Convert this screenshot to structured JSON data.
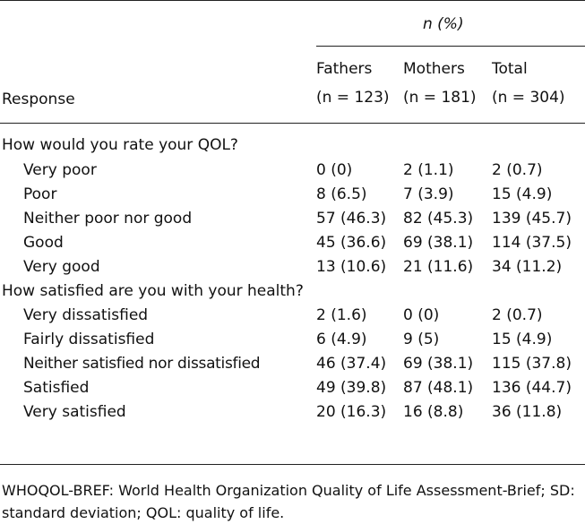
{
  "header": {
    "n_percent_label": "n (%)",
    "response_label": "Response",
    "columns": [
      {
        "name": "Fathers",
        "n": "(n = 123)"
      },
      {
        "name": "Mothers",
        "n": "(n = 181)"
      },
      {
        "name": "Total",
        "n": "(n = 304)"
      }
    ]
  },
  "sections": [
    {
      "title": "How would you rate your QOL?",
      "rows": [
        {
          "label": "Very poor",
          "fathers": "0 (0)",
          "mothers": "2 (1.1)",
          "total": "2 (0.7)"
        },
        {
          "label": "Poor",
          "fathers": "8 (6.5)",
          "mothers": "7 (3.9)",
          "total": "15 (4.9)"
        },
        {
          "label": "Neither poor nor good",
          "fathers": "57 (46.3)",
          "mothers": "82 (45.3)",
          "total": "139 (45.7)"
        },
        {
          "label": "Good",
          "fathers": "45 (36.6)",
          "mothers": "69 (38.1)",
          "total": "114 (37.5)"
        },
        {
          "label": "Very good",
          "fathers": "13 (10.6)",
          "mothers": "21 (11.6)",
          "total": "34 (11.2)"
        }
      ]
    },
    {
      "title": "How satisfied are you with your health?",
      "rows": [
        {
          "label": "Very dissatisfied",
          "fathers": "2 (1.6)",
          "mothers": "0 (0)",
          "total": "2 (0.7)"
        },
        {
          "label": "Fairly dissatisfied",
          "fathers": "6 (4.9)",
          "mothers": "9 (5)",
          "total": "15 (4.9)"
        },
        {
          "label": "Neither satisfied nor dissatisfied",
          "fathers": "46 (37.4)",
          "mothers": "69 (38.1)",
          "total": "115 (37.8)"
        },
        {
          "label": "Satisfied",
          "fathers": "49 (39.8)",
          "mothers": "87 (48.1)",
          "total": "136 (44.7)"
        },
        {
          "label": "Very satisfied",
          "fathers": "20 (16.3)",
          "mothers": "16 (8.8)",
          "total": "36 (11.8)"
        }
      ]
    }
  ],
  "footnote": "WHOQOL-BREF: World Health Organization Quality of Life Assessment-Brief; SD: standard deviation; QOL: quality of life."
}
